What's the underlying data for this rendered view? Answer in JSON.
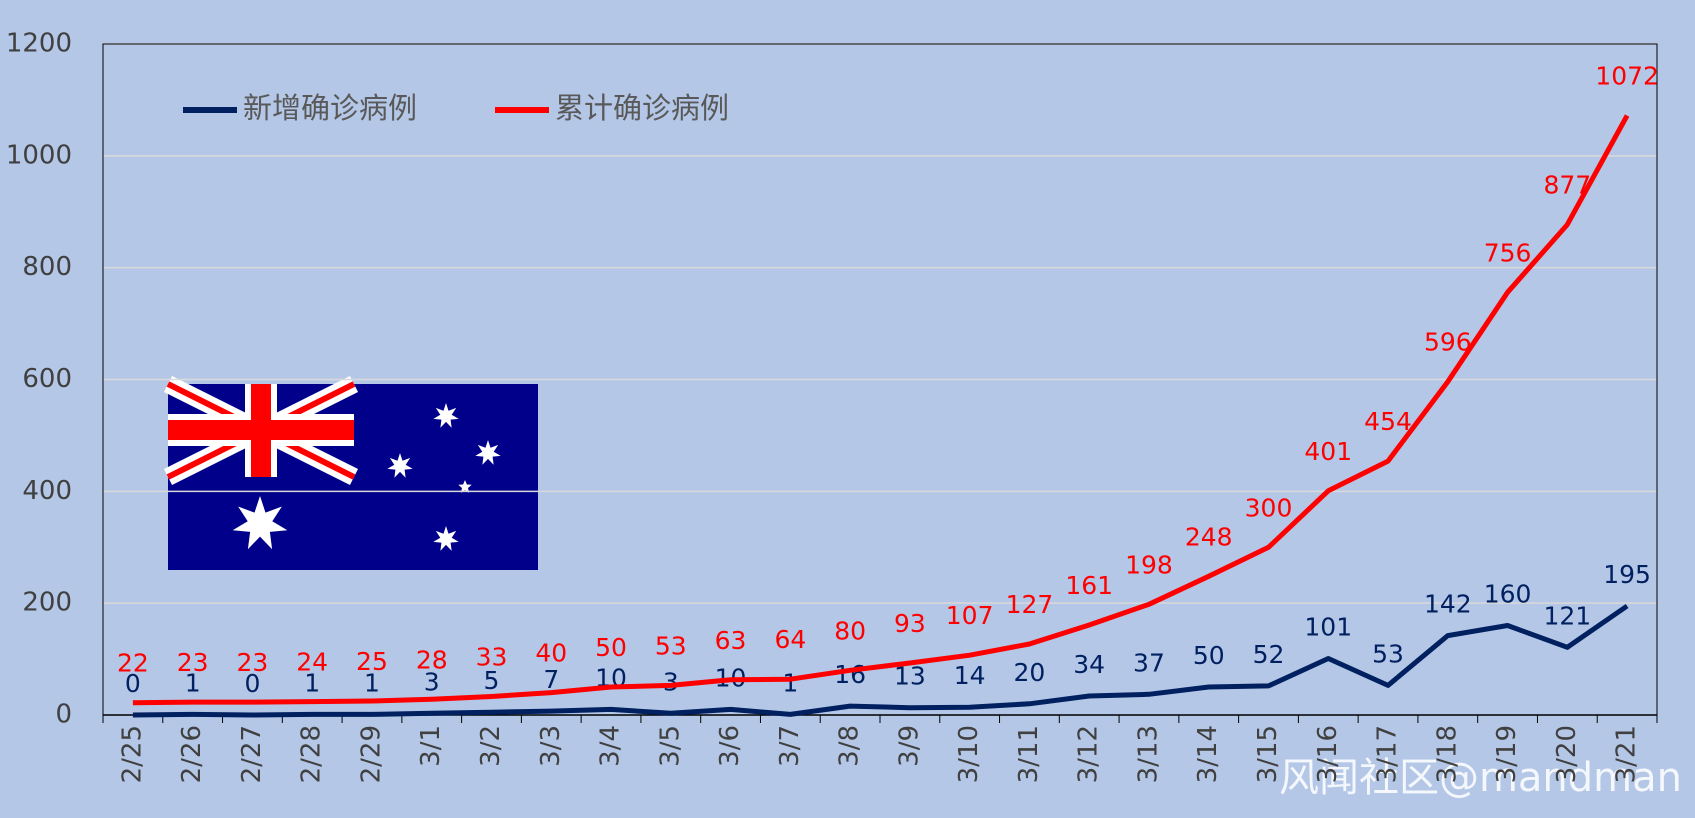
{
  "chart_data": {
    "type": "line",
    "categories": [
      "2/25",
      "2/26",
      "2/27",
      "2/28",
      "2/29",
      "3/1",
      "3/2",
      "3/3",
      "3/4",
      "3/5",
      "3/6",
      "3/7",
      "3/8",
      "3/9",
      "3/10",
      "3/11",
      "3/12",
      "3/13",
      "3/14",
      "3/15",
      "3/16",
      "3/17",
      "3/18",
      "3/19",
      "3/20",
      "3/21"
    ],
    "series": [
      {
        "name": "新增确诊病例",
        "color": "#002060",
        "values": [
          0,
          1,
          0,
          1,
          1,
          3,
          5,
          7,
          10,
          3,
          10,
          1,
          16,
          13,
          14,
          20,
          34,
          37,
          50,
          52,
          101,
          53,
          142,
          160,
          121,
          195
        ]
      },
      {
        "name": "累计确诊病例",
        "color": "#ff0000",
        "values": [
          22,
          23,
          23,
          24,
          25,
          28,
          33,
          40,
          50,
          53,
          63,
          64,
          80,
          93,
          107,
          127,
          161,
          198,
          248,
          300,
          401,
          454,
          596,
          756,
          877,
          1072
        ]
      }
    ],
    "ylim": [
      0,
      1200
    ],
    "yticks": [
      0,
      200,
      400,
      600,
      800,
      1000,
      1200
    ],
    "grid": true,
    "legend": "upper left"
  },
  "watermark": "风闻社区@mandman"
}
